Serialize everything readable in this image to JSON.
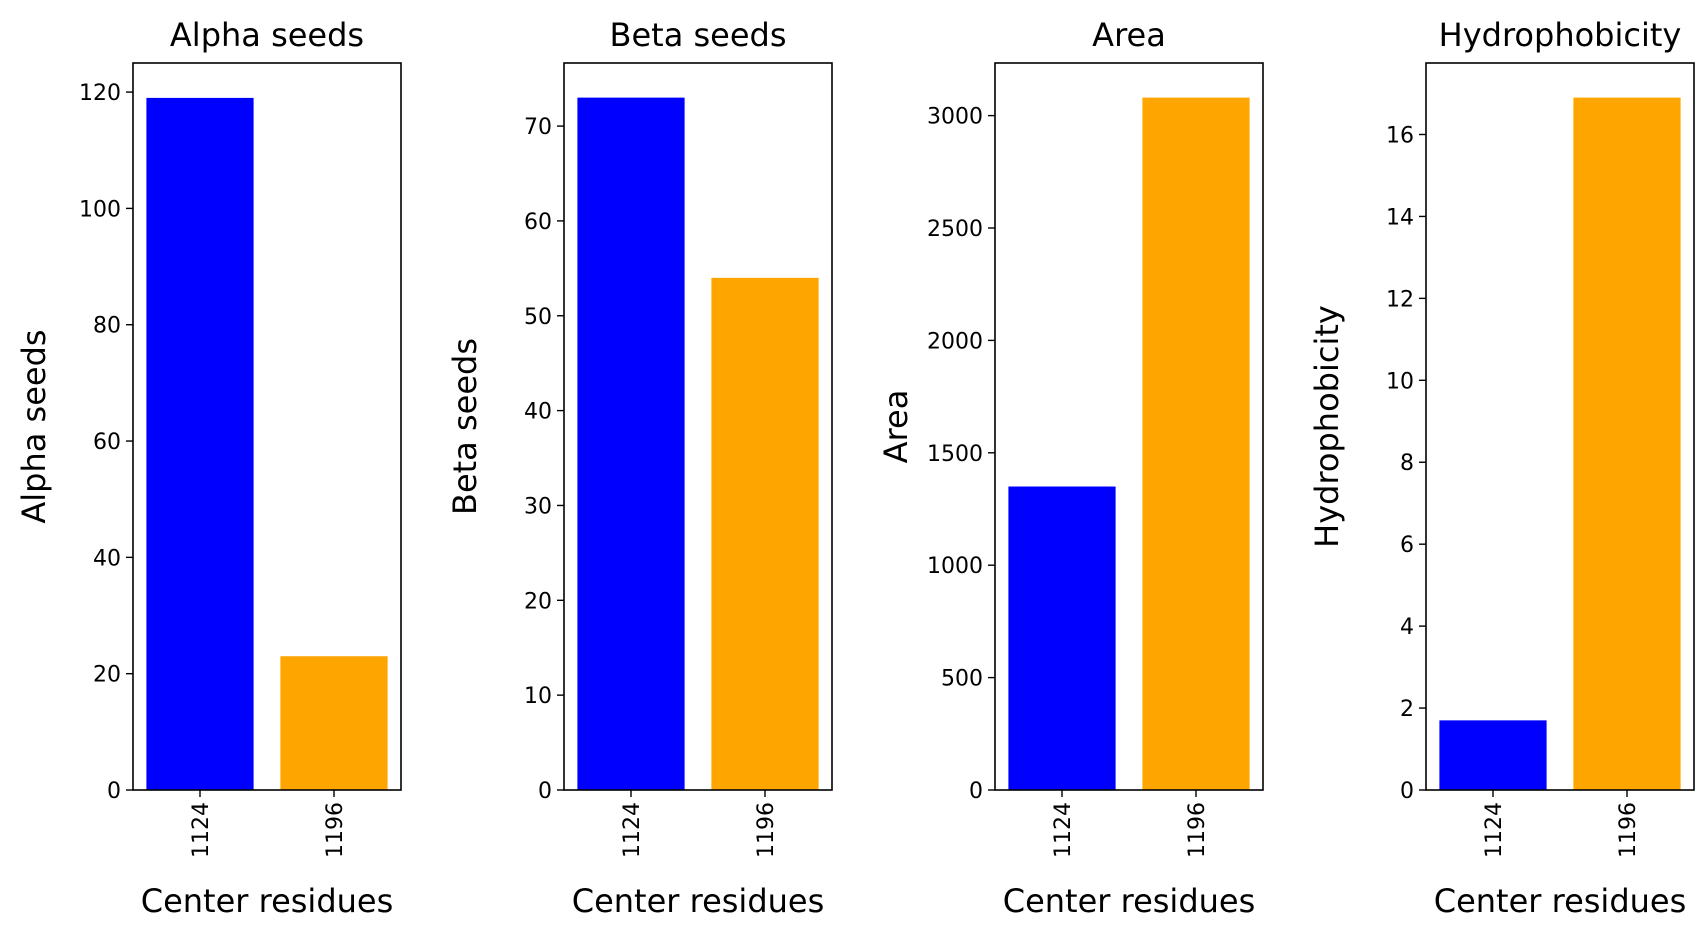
{
  "chart_data": [
    {
      "type": "bar",
      "title": "Alpha seeds",
      "xlabel": "Center residues",
      "ylabel": "Alpha seeds",
      "categories": [
        "1124",
        "1196"
      ],
      "values": [
        119,
        23
      ],
      "colors": [
        "#0000ff",
        "#ffa500"
      ],
      "ylim": [
        0,
        125
      ],
      "yticks": [
        0,
        20,
        40,
        60,
        80,
        100,
        120
      ],
      "grid": false
    },
    {
      "type": "bar",
      "title": "Beta seeds",
      "xlabel": "Center residues",
      "ylabel": "Beta seeds",
      "categories": [
        "1124",
        "1196"
      ],
      "values": [
        73,
        54
      ],
      "colors": [
        "#0000ff",
        "#ffa500"
      ],
      "ylim": [
        0,
        76.65
      ],
      "yticks": [
        0,
        10,
        20,
        30,
        40,
        50,
        60,
        70
      ],
      "grid": false
    },
    {
      "type": "bar",
      "title": "Area",
      "xlabel": "Center residues",
      "ylabel": "Area",
      "categories": [
        "1124",
        "1196"
      ],
      "values": [
        1350,
        3080
      ],
      "colors": [
        "#0000ff",
        "#ffa500"
      ],
      "ylim": [
        0,
        3234
      ],
      "yticks": [
        0,
        500,
        1000,
        1500,
        2000,
        2500,
        3000
      ],
      "grid": false
    },
    {
      "type": "bar",
      "title": "Hydrophobicity",
      "xlabel": "Center residues",
      "ylabel": "Hydrophobicity",
      "categories": [
        "1124",
        "1196"
      ],
      "values": [
        1.7,
        16.9
      ],
      "colors": [
        "#0000ff",
        "#ffa500"
      ],
      "ylim": [
        0,
        17.745
      ],
      "yticks": [
        0,
        2,
        4,
        6,
        8,
        10,
        12,
        14,
        16
      ],
      "grid": false
    }
  ]
}
